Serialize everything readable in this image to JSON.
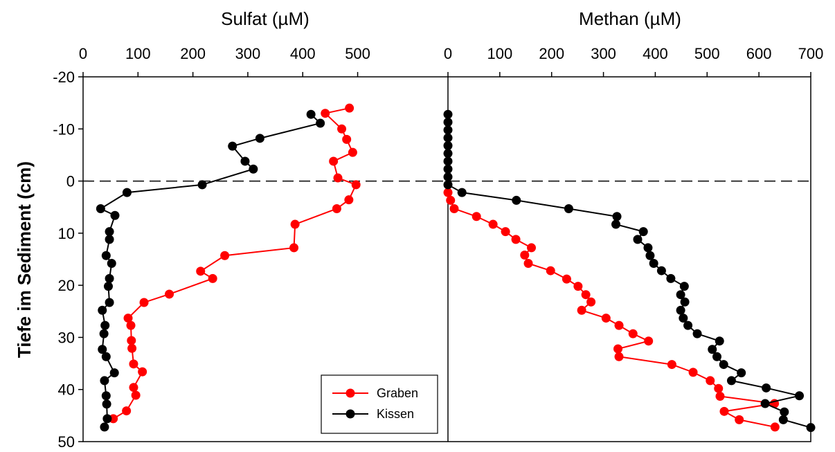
{
  "chart_data": {
    "type": "line",
    "ylabel": "Tiefe im Sediment (cm)",
    "ylim": [
      50,
      -20
    ],
    "yticks": [
      "-20",
      "-10",
      "0",
      "10",
      "20",
      "30",
      "40",
      "50"
    ],
    "reference_line": {
      "y": 0,
      "style": "dashed"
    },
    "legend": {
      "position": "bottom-left of right panel area",
      "entries": [
        {
          "name": "Graben",
          "color": "#ff0000"
        },
        {
          "name": "Kissen",
          "color": "#000000"
        }
      ]
    },
    "panels": [
      {
        "title": "Sulfat (µM)",
        "xlim": [
          0,
          580
        ],
        "xticks": [
          "0",
          "100",
          "200",
          "300",
          "400",
          "500"
        ],
        "series": [
          {
            "name": "Graben",
            "color": "#ff0000",
            "points": [
              [
                485,
                -14
              ],
              [
                441,
                -13
              ],
              [
                471,
                -10
              ],
              [
                480,
                -8
              ],
              [
                491,
                -5.5
              ],
              [
                456,
                -3.8
              ],
              [
                464,
                -0.6
              ],
              [
                497,
                0.7
              ],
              [
                484,
                3.6
              ],
              [
                462,
                5.3
              ],
              [
                386,
                8.3
              ],
              [
                384,
                12.8
              ],
              [
                258,
                14.3
              ],
              [
                214,
                17.3
              ],
              [
                236,
                18.7
              ],
              [
                157,
                21.7
              ],
              [
                111,
                23.3
              ],
              [
                82,
                26.3
              ],
              [
                87,
                27.7
              ],
              [
                88,
                30.6
              ],
              [
                89,
                32.1
              ],
              [
                92,
                35.1
              ],
              [
                108,
                36.6
              ],
              [
                92,
                39.6
              ],
              [
                96,
                41.1
              ],
              [
                79,
                44.1
              ],
              [
                55,
                45.6
              ]
            ]
          },
          {
            "name": "Kissen",
            "color": "#000000",
            "points": [
              [
                415,
                -12.8
              ],
              [
                432,
                -11.1
              ],
              [
                322,
                -8.2
              ],
              [
                272,
                -6.7
              ],
              [
                295,
                -3.8
              ],
              [
                310,
                -2.3
              ],
              [
                217,
                0.7
              ],
              [
                80,
                2.2
              ],
              [
                32,
                5.3
              ],
              [
                58,
                6.6
              ],
              [
                48,
                9.7
              ],
              [
                48,
                11.2
              ],
              [
                42,
                14.3
              ],
              [
                52,
                15.8
              ],
              [
                48,
                18.7
              ],
              [
                46,
                20.2
              ],
              [
                48,
                23.3
              ],
              [
                35,
                24.8
              ],
              [
                40,
                27.7
              ],
              [
                38,
                29.3
              ],
              [
                35,
                32.3
              ],
              [
                42,
                33.7
              ],
              [
                57,
                36.8
              ],
              [
                39,
                38.3
              ],
              [
                42,
                41.2
              ],
              [
                43,
                42.8
              ],
              [
                44,
                45.6
              ],
              [
                39,
                47.2
              ]
            ]
          }
        ]
      },
      {
        "title": "Methan (µM)",
        "xlim": [
          0,
          700
        ],
        "xticks": [
          "0",
          "100",
          "200",
          "300",
          "400",
          "500",
          "600",
          "700"
        ],
        "series": [
          {
            "name": "Graben",
            "color": "#ff0000",
            "points": [
              [
                0,
                2.2
              ],
              [
                5,
                3.7
              ],
              [
                12,
                5.3
              ],
              [
                55,
                6.8
              ],
              [
                87,
                8.3
              ],
              [
                111,
                9.7
              ],
              [
                131,
                11.2
              ],
              [
                161,
                12.8
              ],
              [
                148,
                14.2
              ],
              [
                155,
                15.8
              ],
              [
                198,
                17.2
              ],
              [
                229,
                18.8
              ],
              [
                251,
                20.2
              ],
              [
                266,
                21.8
              ],
              [
                276,
                23.2
              ],
              [
                258,
                24.8
              ],
              [
                305,
                26.3
              ],
              [
                330,
                27.7
              ],
              [
                357,
                29.3
              ],
              [
                387,
                30.7
              ],
              [
                328,
                32.2
              ],
              [
                330,
                33.7
              ],
              [
                432,
                35.2
              ],
              [
                473,
                36.7
              ],
              [
                506,
                38.3
              ],
              [
                522,
                39.8
              ],
              [
                525,
                41.3
              ],
              [
                630,
                42.7
              ],
              [
                533,
                44.2
              ],
              [
                562,
                45.8
              ],
              [
                631,
                47.2
              ]
            ]
          },
          {
            "name": "Kissen",
            "color": "#000000",
            "points": [
              [
                0,
                -12.8
              ],
              [
                0,
                -11.3
              ],
              [
                0,
                -9.8
              ],
              [
                0,
                -8.3
              ],
              [
                0,
                -6.8
              ],
              [
                0,
                -5.3
              ],
              [
                0,
                -3.8
              ],
              [
                0,
                -2.3
              ],
              [
                0,
                -0.8
              ],
              [
                0,
                0.7
              ],
              [
                27,
                2.2
              ],
              [
                132,
                3.7
              ],
              [
                233,
                5.3
              ],
              [
                326,
                6.8
              ],
              [
                324,
                8.3
              ],
              [
                377,
                9.7
              ],
              [
                366,
                11.2
              ],
              [
                386,
                12.8
              ],
              [
                390,
                14.3
              ],
              [
                397,
                15.8
              ],
              [
                412,
                17.2
              ],
              [
                430,
                18.7
              ],
              [
                456,
                20.2
              ],
              [
                449,
                21.8
              ],
              [
                457,
                23.2
              ],
              [
                449,
                24.8
              ],
              [
                454,
                26.3
              ],
              [
                463,
                27.7
              ],
              [
                481,
                29.3
              ],
              [
                524,
                30.7
              ],
              [
                510,
                32.3
              ],
              [
                519,
                33.7
              ],
              [
                532,
                35.2
              ],
              [
                566,
                36.8
              ],
              [
                547,
                38.3
              ],
              [
                614,
                39.7
              ],
              [
                678,
                41.2
              ],
              [
                612,
                42.7
              ],
              [
                649,
                44.3
              ],
              [
                647,
                45.8
              ],
              [
                700,
                47.3
              ]
            ]
          }
        ]
      }
    ]
  }
}
